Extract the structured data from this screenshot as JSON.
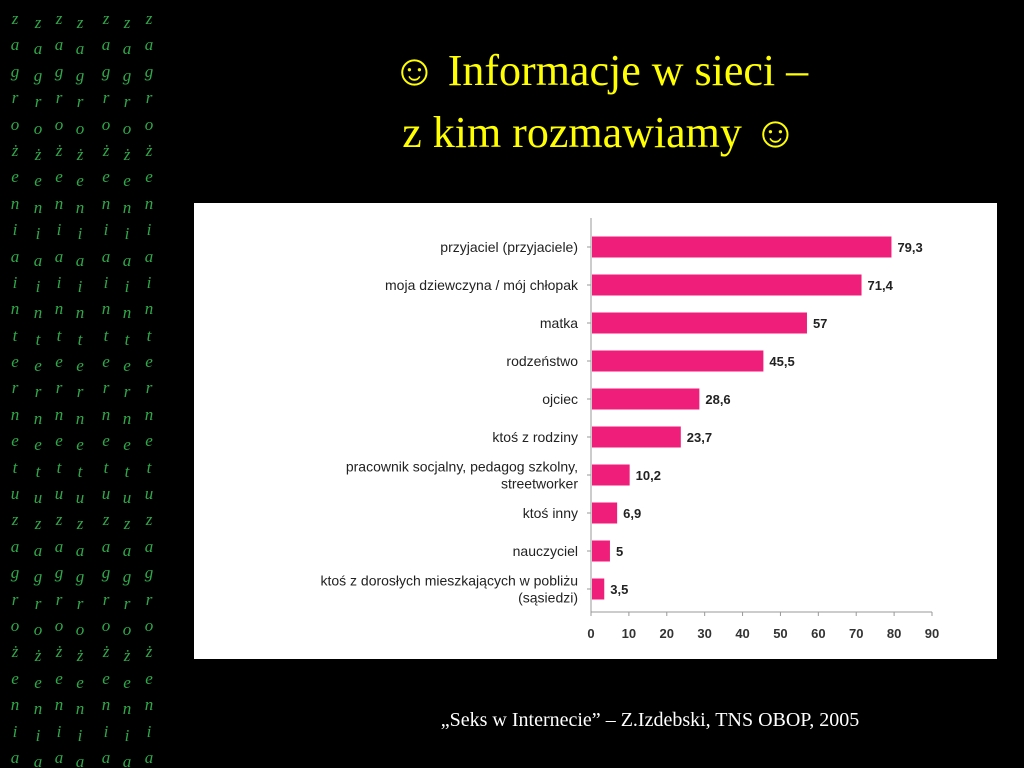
{
  "slide": {
    "title_line1": "☺ Informacje w sieci –",
    "title_line2": "z kim rozmawiamy ☺",
    "source": "„Seks w Internecie” – Z.Izdebski, TNS OBOP, 2005",
    "sidebar_letters": [
      "z",
      "a",
      "g",
      "r",
      "o",
      "ż",
      "e",
      "n",
      "i",
      "a",
      "i",
      "n",
      "t",
      "e",
      "r",
      "n",
      "e",
      "t",
      "u",
      "z",
      "a",
      "g",
      "r",
      "o",
      "ż",
      "e",
      "n",
      "i",
      "a"
    ],
    "colors": {
      "background": "#000000",
      "title": "#ffff00",
      "sidebar_text": "#2fa84a",
      "bar": "#ee1e7a"
    }
  },
  "chart_data": {
    "type": "bar",
    "orientation": "horizontal",
    "categories": [
      [
        "przyjaciel (przyjaciele)"
      ],
      [
        "moja dziewczyna / mój chłopak"
      ],
      [
        "matka"
      ],
      [
        "rodzeństwo"
      ],
      [
        "ojciec"
      ],
      [
        "ktoś z rodziny"
      ],
      [
        "pracownik socjalny, pedagog szkolny,",
        "streetworker"
      ],
      [
        "ktoś inny"
      ],
      [
        "nauczyciel"
      ],
      [
        "ktoś z dorosłych mieszkających w pobliżu",
        "(sąsiedzi)"
      ]
    ],
    "values": [
      79.3,
      71.4,
      57,
      45.5,
      28.6,
      23.7,
      10.2,
      6.9,
      5,
      3.5
    ],
    "value_labels": [
      "79,3",
      "71,4",
      "57",
      "45,5",
      "28,6",
      "23,7",
      "10,2",
      "6,9",
      "5",
      "3,5"
    ],
    "xlim": [
      0,
      90
    ],
    "xticks": [
      0,
      10,
      20,
      30,
      40,
      50,
      60,
      70,
      80,
      90
    ],
    "grid": false,
    "legend": "none"
  }
}
